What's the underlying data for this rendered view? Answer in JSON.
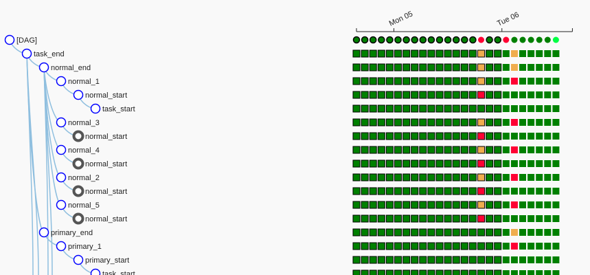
{
  "timeline": {
    "ticks": [
      {
        "label": "Mon 05",
        "col": 4.5
      },
      {
        "label": "Tue 06",
        "col": 17.5
      }
    ]
  },
  "colors": {
    "success": "#008000",
    "success_border": "#003300",
    "failed": "#ff0033",
    "upstream_failed": "#f0ad4e",
    "running": "#00ff44",
    "node_ring": "#0000ff",
    "operator_ring": "#555555",
    "tree_line": "#8fbfdf"
  },
  "dag_runs": [
    "success",
    "success",
    "success",
    "success",
    "success",
    "success",
    "success",
    "success",
    "success",
    "success",
    "success",
    "success",
    "success",
    "success",
    "success",
    "failed",
    "success",
    "success",
    "failed",
    "success",
    "success",
    "success",
    "success",
    "success",
    "running"
  ],
  "tree": [
    {
      "label": "[DAG]",
      "depth": 0,
      "kind": "dag",
      "states": null
    },
    {
      "label": "task_end",
      "depth": 1,
      "kind": "task",
      "states": "sssssssssssssssusssusssss"
    },
    {
      "label": "normal_end",
      "depth": 2,
      "kind": "task",
      "states": "sssssssssssssssusssusssss"
    },
    {
      "label": "normal_1",
      "depth": 3,
      "kind": "task",
      "states": "sssssssssssssssusssfsssss"
    },
    {
      "label": "normal_start",
      "depth": 4,
      "kind": "task",
      "states": "sssssssssssssssfsssssssss"
    },
    {
      "label": "task_start",
      "depth": 5,
      "kind": "task",
      "states": "sssssssssssssssssssssssss"
    },
    {
      "label": "normal_3",
      "depth": 3,
      "kind": "task",
      "states": "sssssssssssssssusssfsssss"
    },
    {
      "label": "normal_start",
      "depth": 4,
      "kind": "ref",
      "states": "sssssssssssssssfsssssssss"
    },
    {
      "label": "normal_4",
      "depth": 3,
      "kind": "task",
      "states": "sssssssssssssssusssfsssss"
    },
    {
      "label": "normal_start",
      "depth": 4,
      "kind": "ref",
      "states": "sssssssssssssssfsssssssss"
    },
    {
      "label": "normal_2",
      "depth": 3,
      "kind": "task",
      "states": "sssssssssssssssusssfsssss"
    },
    {
      "label": "normal_start",
      "depth": 4,
      "kind": "ref",
      "states": "sssssssssssssssfsssssssss"
    },
    {
      "label": "normal_5",
      "depth": 3,
      "kind": "task",
      "states": "sssssssssssssssusssfsssss"
    },
    {
      "label": "normal_start",
      "depth": 4,
      "kind": "ref",
      "states": "sssssssssssssssfsssssssss"
    },
    {
      "label": "primary_end",
      "depth": 2,
      "kind": "task",
      "states": "sssssssssssssssssssusssss"
    },
    {
      "label": "primary_1",
      "depth": 3,
      "kind": "task",
      "states": "sssssssssssssssssssfsssss"
    },
    {
      "label": "primary_start",
      "depth": 4,
      "kind": "task",
      "states": "sssssssssssssssssssssssss"
    },
    {
      "label": "task_start",
      "depth": 5,
      "kind": "task",
      "states": "sssssssssssssssssssssssss"
    }
  ]
}
